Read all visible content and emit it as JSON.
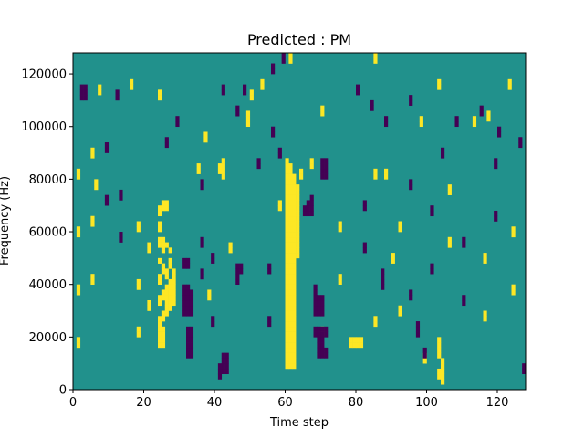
{
  "chart_data": {
    "type": "heatmap",
    "title": "Predicted : PM",
    "xlabel": "Time step",
    "ylabel": "Frequency (Hz)",
    "xlim": [
      0,
      128
    ],
    "ylim": [
      0,
      128000
    ],
    "x_ticks": [
      0,
      20,
      40,
      60,
      80,
      100,
      120
    ],
    "y_ticks": [
      0,
      20000,
      40000,
      60000,
      80000,
      100000,
      120000
    ],
    "x_tick_labels": [
      "0",
      "20",
      "40",
      "60",
      "80",
      "100",
      "120"
    ],
    "y_tick_labels": [
      "0",
      "20000",
      "40000",
      "60000",
      "80000",
      "100000",
      "120000"
    ],
    "n_time_steps": 128,
    "n_freq_bins": 64,
    "colors": {
      "background": "#21918c",
      "high": "#fde725",
      "low": "#440154"
    },
    "background_value": 0,
    "cells": [
      {
        "t": 60,
        "f": [
          4,
          5,
          6,
          7,
          8,
          9,
          10,
          11,
          12,
          13,
          14,
          15,
          16,
          17,
          18,
          19,
          20,
          21,
          22,
          23,
          24,
          25,
          26,
          27,
          28,
          29,
          30,
          31,
          32,
          33,
          34,
          35,
          36,
          37,
          38,
          39,
          40,
          41,
          42,
          43
        ],
        "v": 1
      },
      {
        "t": 61,
        "f": [
          4,
          5,
          6,
          7,
          8,
          9,
          10,
          11,
          12,
          13,
          14,
          15,
          16,
          17,
          18,
          19,
          20,
          21,
          22,
          23,
          24,
          25,
          26,
          27,
          28,
          29,
          30,
          31,
          32,
          33,
          34,
          35,
          36,
          37,
          38,
          39,
          40,
          41,
          42
        ],
        "v": 1
      },
      {
        "t": 62,
        "f": [
          4,
          5,
          6,
          7,
          8,
          9,
          10,
          11,
          12,
          13,
          14,
          15,
          16,
          17,
          18,
          19,
          20,
          21,
          22,
          23,
          24,
          25,
          26,
          27,
          28,
          29,
          30,
          31,
          32,
          33,
          34,
          35,
          36,
          37,
          38,
          39,
          40
        ],
        "v": 1
      },
      {
        "t": 63,
        "f": [
          25,
          26,
          27,
          28,
          29,
          30,
          31,
          32,
          33,
          34,
          35,
          36,
          37,
          38
        ],
        "v": 1
      },
      {
        "t": 24,
        "f": [
          8,
          9,
          10,
          11,
          12,
          13,
          16,
          17,
          20,
          21,
          24,
          27,
          28,
          30,
          31,
          33,
          34
        ],
        "v": 1
      },
      {
        "t": 25,
        "f": [
          8,
          9,
          10,
          11,
          13,
          14,
          17,
          18,
          22,
          23,
          26,
          27,
          28,
          34,
          35
        ],
        "v": 1
      },
      {
        "t": 26,
        "f": [
          14,
          15,
          16,
          17,
          18,
          19,
          21,
          22,
          27,
          34,
          35
        ],
        "v": 1
      },
      {
        "t": 27,
        "f": [
          15,
          16,
          17,
          18,
          19,
          20,
          23,
          24,
          26
        ],
        "v": 1
      },
      {
        "t": 28,
        "f": [
          16,
          17,
          18,
          19,
          20,
          21,
          22
        ],
        "v": 1
      },
      {
        "t": 38,
        "f": [
          17,
          18
        ],
        "v": 1
      },
      {
        "t": 41,
        "f": [
          41,
          42
        ],
        "v": 1
      },
      {
        "t": 42,
        "f": [
          40,
          41,
          42,
          43
        ],
        "v": 1
      },
      {
        "t": 44,
        "f": [
          26,
          27
        ],
        "v": 1
      },
      {
        "t": 49,
        "f": [
          50,
          51,
          52
        ],
        "v": 1
      },
      {
        "t": 50,
        "f": [
          55,
          56
        ],
        "v": 1
      },
      {
        "t": 58,
        "f": [
          34,
          35
        ],
        "v": 1
      },
      {
        "t": 64,
        "f": [
          40,
          41
        ],
        "v": 1
      },
      {
        "t": 67,
        "f": [
          42,
          43
        ],
        "v": 1
      },
      {
        "t": 70,
        "f": [
          10,
          11
        ],
        "v": 1
      },
      {
        "t": 78,
        "f": [
          8,
          9
        ],
        "v": 1
      },
      {
        "t": 79,
        "f": [
          8,
          9
        ],
        "v": 1
      },
      {
        "t": 80,
        "f": [
          8,
          9
        ],
        "v": 1
      },
      {
        "t": 81,
        "f": [
          8,
          9
        ],
        "v": 1
      },
      {
        "t": 88,
        "f": [
          40,
          41
        ],
        "v": 1
      },
      {
        "t": 90,
        "f": [
          24,
          25
        ],
        "v": 1
      },
      {
        "t": 99,
        "f": [
          5,
          6
        ],
        "v": 1
      },
      {
        "t": 103,
        "f": [
          2,
          3,
          6,
          7,
          8,
          9
        ],
        "v": 1
      },
      {
        "t": 104,
        "f": [
          1,
          2,
          3,
          4,
          5
        ],
        "v": 1
      },
      {
        "t": 31,
        "f": [
          14,
          15,
          16,
          17,
          18,
          19,
          23,
          24
        ],
        "v": -1
      },
      {
        "t": 32,
        "f": [
          6,
          7,
          8,
          9,
          10,
          11,
          14,
          15,
          16,
          17,
          18,
          19,
          23,
          24
        ],
        "v": -1
      },
      {
        "t": 33,
        "f": [
          6,
          7,
          8,
          9,
          10,
          11,
          14,
          15,
          16,
          17,
          18
        ],
        "v": -1
      },
      {
        "t": 42,
        "f": [
          3,
          4,
          5,
          6
        ],
        "v": -1
      },
      {
        "t": 43,
        "f": [
          3,
          4,
          5,
          6
        ],
        "v": -1
      },
      {
        "t": 68,
        "f": [
          10,
          11,
          14,
          15,
          16,
          17,
          18,
          19
        ],
        "v": -1
      },
      {
        "t": 69,
        "f": [
          6,
          7,
          8,
          9,
          10,
          11,
          14,
          15,
          16,
          17
        ],
        "v": -1
      },
      {
        "t": 70,
        "f": [
          6,
          7,
          8,
          9,
          10,
          11,
          14,
          15,
          16,
          17
        ],
        "v": -1
      },
      {
        "t": 71,
        "f": [
          6,
          7,
          10,
          11
        ],
        "v": -1
      },
      {
        "t": 65,
        "f": [
          33,
          34
        ],
        "v": -1
      },
      {
        "t": 66,
        "f": [
          33,
          34,
          35
        ],
        "v": -1
      },
      {
        "t": 67,
        "f": [
          33,
          34,
          35,
          36
        ],
        "v": -1
      },
      {
        "t": 70,
        "f": [
          40,
          41,
          42,
          43
        ],
        "v": -1
      },
      {
        "t": 71,
        "f": [
          40,
          41,
          42,
          43
        ],
        "v": -1
      },
      {
        "t": 46,
        "f": [
          20,
          21,
          22,
          23
        ],
        "v": -1
      },
      {
        "t": 47,
        "f": [
          22,
          23
        ],
        "v": -1
      },
      {
        "t": 36,
        "f": [
          21,
          22
        ],
        "v": -1
      },
      {
        "t": 41,
        "f": [
          2,
          3,
          4
        ],
        "v": -1
      },
      {
        "t": 52,
        "f": [
          42,
          43
        ],
        "v": -1
      },
      {
        "t": 56,
        "f": [
          48,
          49
        ],
        "v": -1
      },
      {
        "t": 58,
        "f": [
          44,
          45
        ],
        "v": -1
      },
      {
        "t": 87,
        "f": [
          19,
          20,
          21,
          22
        ],
        "v": -1
      },
      {
        "t": 97,
        "f": [
          10,
          11,
          12
        ],
        "v": -1
      },
      {
        "t": 99,
        "f": [
          6,
          7
        ],
        "v": -1
      },
      {
        "t": 2,
        "f": [
          55,
          56,
          57
        ],
        "v": -1
      },
      {
        "t": 3,
        "f": [
          55,
          56,
          57
        ],
        "v": -1
      },
      {
        "t": 12,
        "f": [
          55,
          56
        ],
        "v": -1
      },
      {
        "t": 26,
        "f": [
          46,
          47
        ],
        "v": -1
      },
      {
        "t": 29,
        "f": [
          50,
          51
        ],
        "v": -1
      },
      {
        "t": 42,
        "f": [
          56,
          57
        ],
        "v": -1
      },
      {
        "t": 46,
        "f": [
          52,
          53
        ],
        "v": -1
      },
      {
        "t": 48,
        "f": [
          56,
          57
        ],
        "v": -1
      },
      {
        "t": 56,
        "f": [
          60,
          61
        ],
        "v": -1
      },
      {
        "t": 59,
        "f": [
          62,
          63
        ],
        "v": -1
      },
      {
        "t": 80,
        "f": [
          56,
          57
        ],
        "v": -1
      },
      {
        "t": 84,
        "f": [
          53,
          54
        ],
        "v": -1
      },
      {
        "t": 88,
        "f": [
          50,
          51
        ],
        "v": -1
      },
      {
        "t": 95,
        "f": [
          54,
          55
        ],
        "v": -1
      },
      {
        "t": 104,
        "f": [
          44,
          45
        ],
        "v": -1
      },
      {
        "t": 108,
        "f": [
          50,
          51
        ],
        "v": -1
      },
      {
        "t": 115,
        "f": [
          52,
          53
        ],
        "v": -1
      },
      {
        "t": 120,
        "f": [
          48,
          49
        ],
        "v": -1
      },
      {
        "t": 126,
        "f": [
          46,
          47
        ],
        "v": -1
      },
      {
        "t": 6,
        "f": [
          38,
          39
        ],
        "v": 1
      },
      {
        "t": 7,
        "f": [
          56,
          57
        ],
        "v": 1
      },
      {
        "t": 16,
        "f": [
          57,
          58
        ],
        "v": 1
      },
      {
        "t": 24,
        "f": [
          55,
          56
        ],
        "v": 1
      },
      {
        "t": 35,
        "f": [
          41,
          42
        ],
        "v": 1
      },
      {
        "t": 37,
        "f": [
          47,
          48
        ],
        "v": 1
      },
      {
        "t": 53,
        "f": [
          57,
          58
        ],
        "v": 1
      },
      {
        "t": 61,
        "f": [
          62,
          63
        ],
        "v": 1
      },
      {
        "t": 70,
        "f": [
          52,
          53
        ],
        "v": 1
      },
      {
        "t": 85,
        "f": [
          62,
          63
        ],
        "v": 1
      },
      {
        "t": 98,
        "f": [
          50,
          51
        ],
        "v": 1
      },
      {
        "t": 103,
        "f": [
          57,
          58
        ],
        "v": 1
      },
      {
        "t": 113,
        "f": [
          50,
          51
        ],
        "v": 1
      },
      {
        "t": 117,
        "f": [
          51,
          52
        ],
        "v": 1
      },
      {
        "t": 123,
        "f": [
          57,
          58
        ],
        "v": 1
      },
      {
        "t": 1,
        "f": [
          8,
          9,
          18,
          19,
          29,
          30,
          40,
          41
        ],
        "v": 1
      },
      {
        "t": 5,
        "f": [
          20,
          21,
          31,
          32,
          44,
          45
        ],
        "v": 1
      },
      {
        "t": 9,
        "f": [
          35,
          36,
          45,
          46
        ],
        "v": -1
      },
      {
        "t": 13,
        "f": [
          28,
          29,
          36,
          37
        ],
        "v": -1
      },
      {
        "t": 18,
        "f": [
          10,
          11,
          19,
          20,
          30,
          31
        ],
        "v": 1
      },
      {
        "t": 21,
        "f": [
          15,
          16,
          26,
          27
        ],
        "v": 1
      },
      {
        "t": 36,
        "f": [
          27,
          28,
          38,
          39
        ],
        "v": -1
      },
      {
        "t": 39,
        "f": [
          12,
          13,
          24,
          25
        ],
        "v": -1
      },
      {
        "t": 55,
        "f": [
          12,
          13,
          22,
          23
        ],
        "v": -1
      },
      {
        "t": 75,
        "f": [
          20,
          21,
          30,
          31
        ],
        "v": 1
      },
      {
        "t": 82,
        "f": [
          26,
          27,
          34,
          35
        ],
        "v": -1
      },
      {
        "t": 85,
        "f": [
          12,
          13,
          40,
          41
        ],
        "v": 1
      },
      {
        "t": 92,
        "f": [
          14,
          15,
          30,
          31
        ],
        "v": 1
      },
      {
        "t": 95,
        "f": [
          17,
          18,
          38,
          39
        ],
        "v": -1
      },
      {
        "t": 101,
        "f": [
          22,
          23,
          33,
          34
        ],
        "v": -1
      },
      {
        "t": 106,
        "f": [
          27,
          28,
          37,
          38
        ],
        "v": 1
      },
      {
        "t": 110,
        "f": [
          16,
          17,
          27,
          28
        ],
        "v": -1
      },
      {
        "t": 116,
        "f": [
          13,
          14,
          24,
          25
        ],
        "v": 1
      },
      {
        "t": 119,
        "f": [
          32,
          33,
          42,
          43
        ],
        "v": -1
      },
      {
        "t": 124,
        "f": [
          18,
          19,
          29,
          30
        ],
        "v": 1
      },
      {
        "t": 127,
        "f": [
          3,
          4
        ],
        "v": -1
      }
    ]
  }
}
